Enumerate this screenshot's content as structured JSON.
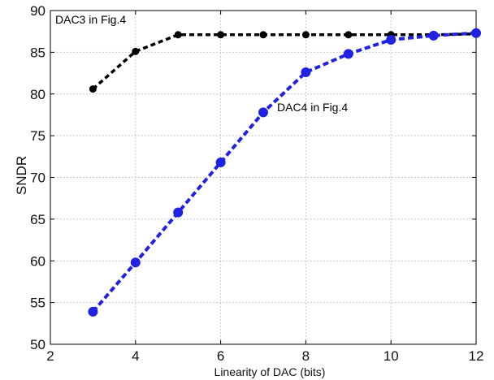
{
  "chart_data": {
    "type": "line",
    "title": "",
    "xlabel": "Linearity of DAC (bits)",
    "ylabel": "SNDR",
    "xlim": [
      2,
      12
    ],
    "ylim": [
      50,
      90
    ],
    "xticks": [
      "2",
      "4",
      "6",
      "8",
      "10",
      "12"
    ],
    "yticks": [
      "50",
      "55",
      "60",
      "65",
      "70",
      "75",
      "80",
      "85",
      "90"
    ],
    "grid": true,
    "series": [
      {
        "name": "DAC3 in Fig.4",
        "color": "#000000",
        "line_style": "dashed",
        "marker": "circle",
        "x": [
          3,
          4,
          5,
          6,
          7,
          8,
          9,
          10,
          11,
          12
        ],
        "y": [
          80.6,
          85.1,
          87.1,
          87.1,
          87.1,
          87.1,
          87.1,
          87.1,
          87.1,
          87.2
        ]
      },
      {
        "name": "DAC4 in Fig.4",
        "color": "#1f22e0",
        "line_style": "dashed",
        "marker": "circle",
        "x": [
          3,
          4,
          5,
          6,
          7,
          8,
          9,
          10,
          11,
          12
        ],
        "y": [
          53.9,
          59.8,
          65.8,
          71.8,
          77.8,
          82.6,
          84.8,
          86.5,
          87.0,
          87.3
        ]
      }
    ],
    "annotations": [
      "DAC3 in Fig.4",
      "DAC4 in Fig.4"
    ]
  }
}
